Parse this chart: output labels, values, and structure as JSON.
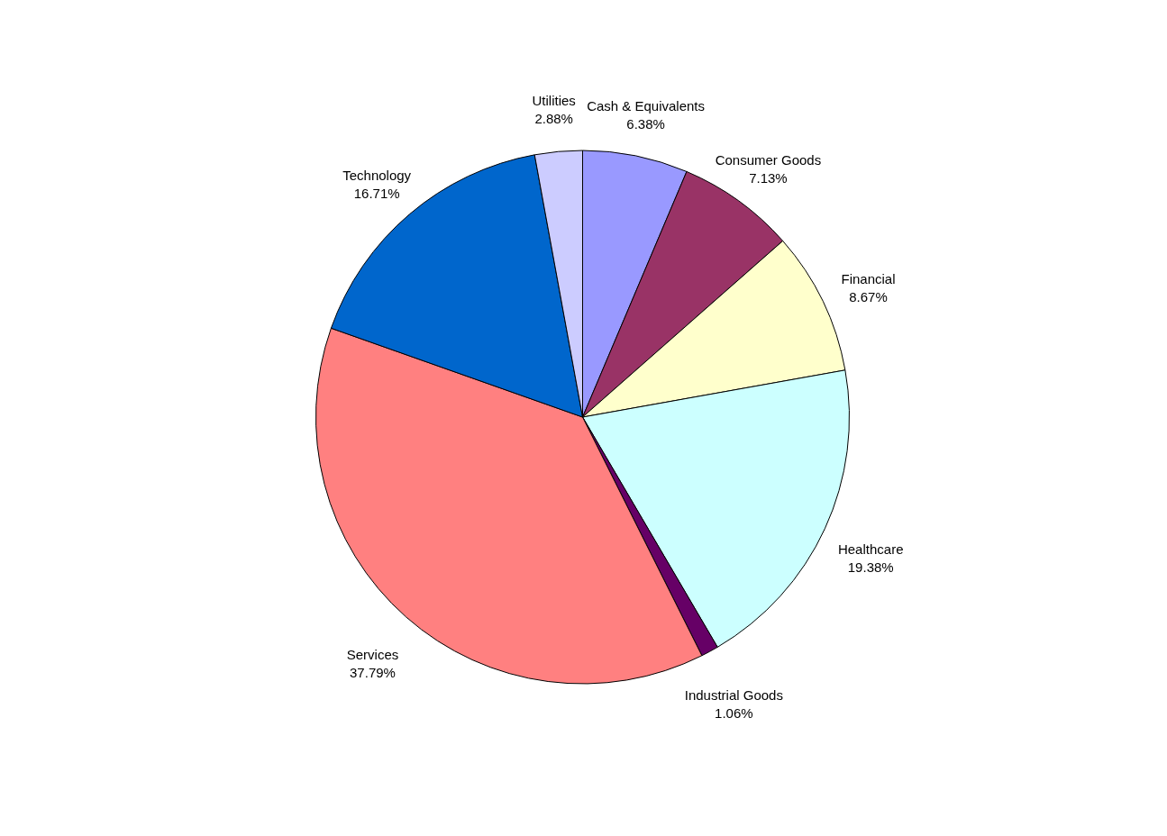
{
  "chart_data": {
    "type": "pie",
    "categories": [
      "Cash & Equivalents",
      "Consumer Goods",
      "Financial",
      "Healthcare",
      "Industrial Goods",
      "Services",
      "Technology",
      "Utilities"
    ],
    "values": [
      6.38,
      7.13,
      8.67,
      19.38,
      1.06,
      37.79,
      16.71,
      2.88
    ],
    "value_labels": [
      "6.38%",
      "7.13%",
      "8.67%",
      "19.38%",
      "1.06%",
      "37.79%",
      "16.71%",
      "2.88%"
    ],
    "colors": [
      "#9999ff",
      "#993366",
      "#ffffcc",
      "#ccffff",
      "#660066",
      "#ff8080",
      "#0066cc",
      "#ccccff"
    ]
  }
}
